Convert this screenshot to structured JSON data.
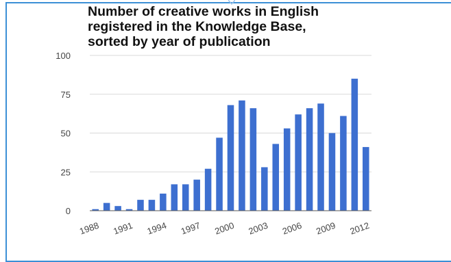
{
  "chart_data": {
    "type": "bar",
    "title_lines": [
      "Number of creative works in English",
      "registered in the Knowledge Base,",
      "sorted by year of publication"
    ],
    "xlabel": "",
    "ylabel": "",
    "ylim": [
      0,
      100
    ],
    "yticks": [
      0,
      25,
      50,
      75,
      100
    ],
    "x_tick_labels": [
      "1988",
      "1991",
      "1994",
      "1997",
      "2000",
      "2003",
      "2006",
      "2009",
      "2012"
    ],
    "x_tick_years": [
      1988,
      1991,
      1994,
      1997,
      2000,
      2003,
      2006,
      2009,
      2012
    ],
    "categories": [
      1988,
      1989,
      1990,
      1991,
      1992,
      1993,
      1994,
      1995,
      1996,
      1997,
      1998,
      1999,
      2000,
      2001,
      2002,
      2003,
      2004,
      2005,
      2006,
      2007,
      2008,
      2009,
      2010,
      2011,
      2012
    ],
    "values": [
      1,
      5,
      3,
      1,
      7,
      7,
      11,
      17,
      17,
      20,
      27,
      47,
      68,
      71,
      66,
      28,
      43,
      53,
      62,
      66,
      69,
      50,
      61,
      85,
      41
    ],
    "bar_color": "#3d6fd0",
    "grid": true
  }
}
